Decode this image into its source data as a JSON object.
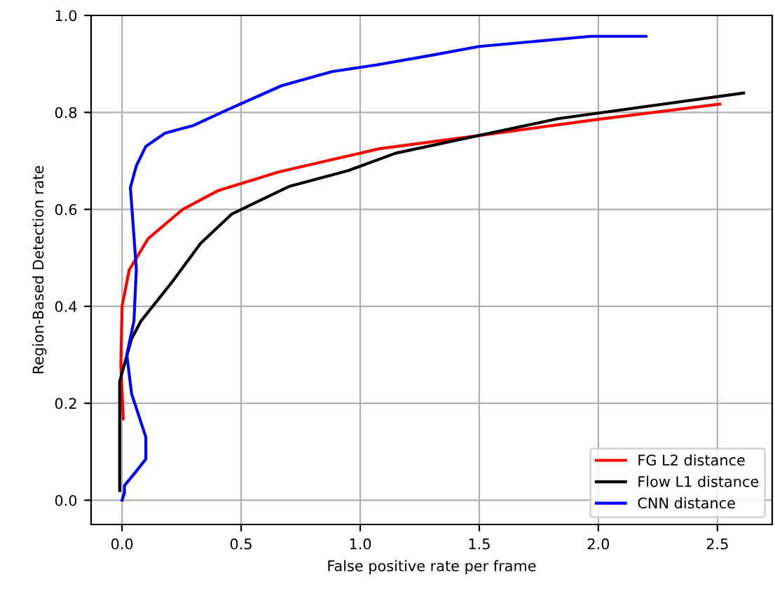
{
  "chart_data": {
    "type": "line",
    "xlabel": "False positive rate per frame",
    "ylabel": "Region-Based Detection rate",
    "xlim": [
      -0.13,
      2.73
    ],
    "ylim": [
      -0.05,
      1.0
    ],
    "xticks": [
      {
        "value": 0,
        "label": "0.0"
      },
      0.5,
      {
        "value": 1,
        "label": "1.0"
      },
      1.5,
      {
        "value": 2,
        "label": "2.0"
      },
      2.5
    ],
    "yticks": [
      {
        "value": 0,
        "label": "0.0"
      },
      0.2,
      0.4,
      0.6,
      0.8,
      {
        "value": 1,
        "label": "1.0"
      }
    ],
    "grid": true,
    "legend": "bottom right",
    "marker": "none",
    "line_style": "solid",
    "series": [
      {
        "name": "FG L2 distance",
        "color": "#ff0000",
        "x": [
          0.005,
          -0.005,
          0.0,
          0.03,
          0.11,
          0.255,
          0.4,
          0.657,
          1.08,
          1.48,
          1.99,
          2.51
        ],
        "values": [
          0.168,
          0.28,
          0.4,
          0.475,
          0.54,
          0.6,
          0.638,
          0.677,
          0.725,
          0.751,
          0.785,
          0.817
        ]
      },
      {
        "name": "Flow L1 distance",
        "color": "#000000",
        "x": [
          -0.01,
          -0.01,
          0.04,
          0.08,
          0.21,
          0.33,
          0.46,
          0.7,
          0.95,
          1.15,
          1.83,
          2.61
        ],
        "values": [
          0.02,
          0.245,
          0.333,
          0.37,
          0.45,
          0.53,
          0.59,
          0.647,
          0.68,
          0.716,
          0.787,
          0.84
        ]
      },
      {
        "name": "CNN distance",
        "color": "#0000ff",
        "x": [
          0.0,
          0.01,
          0.01,
          0.06,
          0.1,
          0.1,
          0.04,
          0.02,
          0.05,
          0.06,
          0.035,
          0.06,
          0.1,
          0.18,
          0.3,
          0.45,
          0.67,
          0.88,
          1.07,
          1.29,
          1.5,
          1.97,
          2.2
        ],
        "values": [
          0.0,
          0.015,
          0.03,
          0.06,
          0.085,
          0.13,
          0.22,
          0.3,
          0.37,
          0.477,
          0.645,
          0.69,
          0.73,
          0.757,
          0.773,
          0.807,
          0.855,
          0.884,
          0.898,
          0.917,
          0.936,
          0.957,
          0.957
        ]
      }
    ]
  }
}
